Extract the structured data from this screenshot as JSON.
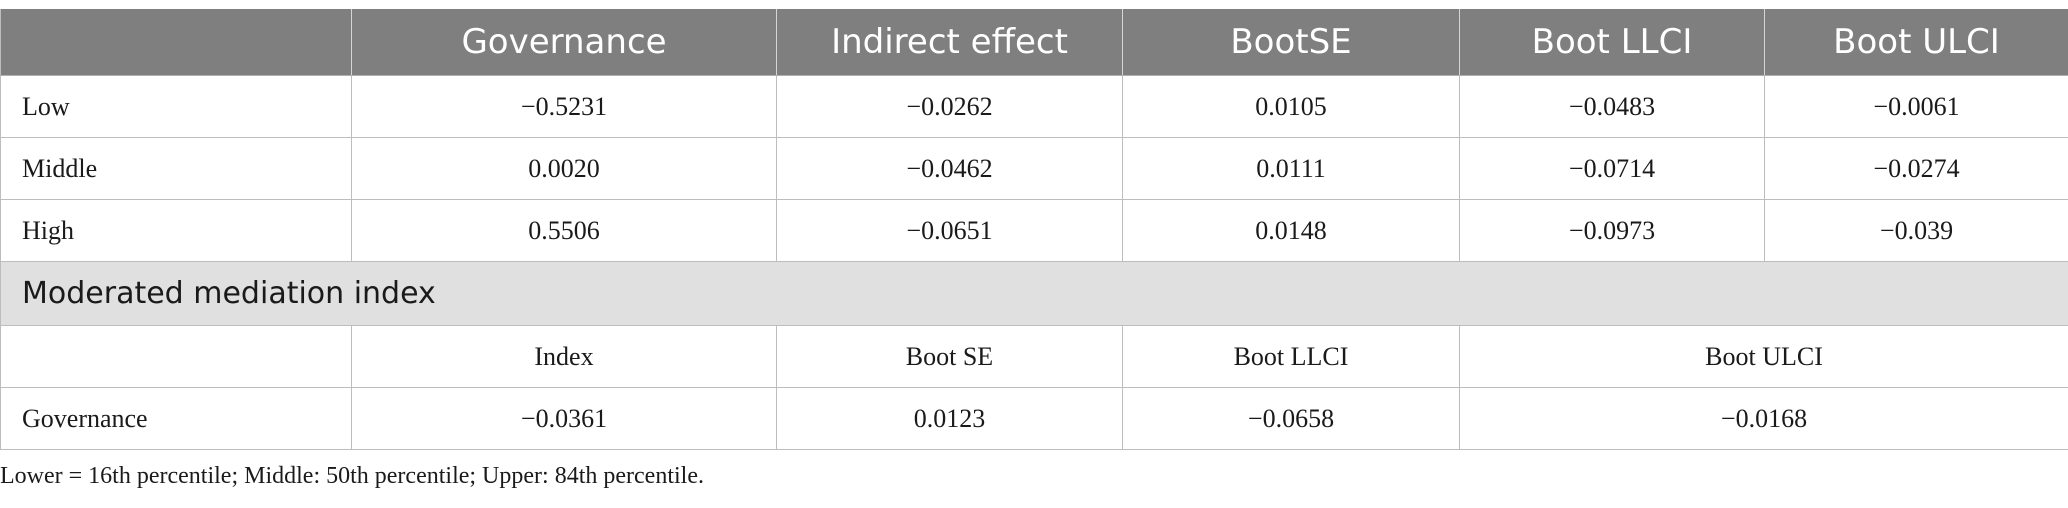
{
  "table": {
    "headers": [
      "",
      "Governance",
      "Indirect effect",
      "BootSE",
      "Boot LLCI",
      "Boot ULCI"
    ],
    "rows": [
      {
        "label": "Low",
        "cells": [
          "−0.5231",
          "−0.0262",
          "0.0105",
          "−0.0483",
          "−0.0061"
        ]
      },
      {
        "label": "Middle",
        "cells": [
          "0.0020",
          "−0.0462",
          "0.0111",
          "−0.0714",
          "−0.0274"
        ]
      },
      {
        "label": "High",
        "cells": [
          "0.5506",
          "−0.0651",
          "0.0148",
          "−0.0973",
          "−0.039"
        ]
      }
    ],
    "section_title": "Moderated mediation index",
    "sub_headers": [
      "",
      "Index",
      "Boot SE",
      "Boot LLCI",
      "Boot ULCI"
    ],
    "index_row": {
      "label": "Governance",
      "cells": [
        "−0.0361",
        "0.0123",
        "−0.0658",
        "−0.0168"
      ]
    }
  },
  "footnote": "Lower = 16th percentile; Middle: 50th percentile; Upper: 84th percentile.",
  "colors": {
    "header_bg": "#7f7f7f",
    "section_bg": "#e0e0e0"
  }
}
